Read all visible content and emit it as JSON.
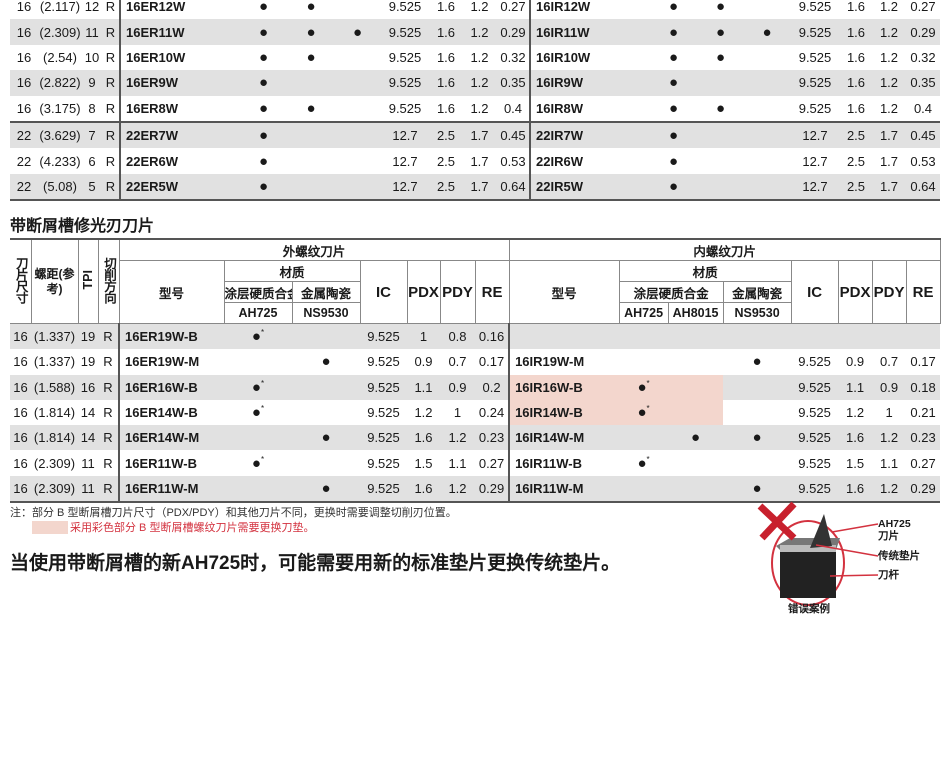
{
  "table1": {
    "rows": [
      {
        "size": "16",
        "pitch": "(2.117)",
        "tpi": "12",
        "dir": "R",
        "ext": {
          "model": "16ER12W",
          "m": [
            "●",
            "●",
            ""
          ],
          "ic": "9.525",
          "pdx": "1.6",
          "pdy": "1.2",
          "re": "0.27"
        },
        "int": {
          "model": "16IR12W",
          "m": [
            "●",
            "●",
            ""
          ],
          "ic": "9.525",
          "pdx": "1.6",
          "pdy": "1.2",
          "re": "0.27"
        }
      },
      {
        "size": "16",
        "pitch": "(2.309)",
        "tpi": "11",
        "dir": "R",
        "ext": {
          "model": "16ER11W",
          "m": [
            "●",
            "●",
            "●"
          ],
          "ic": "9.525",
          "pdx": "1.6",
          "pdy": "1.2",
          "re": "0.29"
        },
        "int": {
          "model": "16IR11W",
          "m": [
            "●",
            "●",
            "●"
          ],
          "ic": "9.525",
          "pdx": "1.6",
          "pdy": "1.2",
          "re": "0.29"
        }
      },
      {
        "size": "16",
        "pitch": "(2.54)",
        "tpi": "10",
        "dir": "R",
        "ext": {
          "model": "16ER10W",
          "m": [
            "●",
            "●",
            ""
          ],
          "ic": "9.525",
          "pdx": "1.6",
          "pdy": "1.2",
          "re": "0.32"
        },
        "int": {
          "model": "16IR10W",
          "m": [
            "●",
            "●",
            ""
          ],
          "ic": "9.525",
          "pdx": "1.6",
          "pdy": "1.2",
          "re": "0.32"
        }
      },
      {
        "size": "16",
        "pitch": "(2.822)",
        "tpi": "9",
        "dir": "R",
        "ext": {
          "model": "16ER9W",
          "m": [
            "●",
            "",
            ""
          ],
          "ic": "9.525",
          "pdx": "1.6",
          "pdy": "1.2",
          "re": "0.35"
        },
        "int": {
          "model": "16IR9W",
          "m": [
            "●",
            "",
            ""
          ],
          "ic": "9.525",
          "pdx": "1.6",
          "pdy": "1.2",
          "re": "0.35"
        }
      },
      {
        "size": "16",
        "pitch": "(3.175)",
        "tpi": "8",
        "dir": "R",
        "ext": {
          "model": "16ER8W",
          "m": [
            "●",
            "●",
            ""
          ],
          "ic": "9.525",
          "pdx": "1.6",
          "pdy": "1.2",
          "re": "0.4"
        },
        "int": {
          "model": "16IR8W",
          "m": [
            "●",
            "●",
            ""
          ],
          "ic": "9.525",
          "pdx": "1.6",
          "pdy": "1.2",
          "re": "0.4"
        }
      },
      {
        "size": "22",
        "pitch": "(3.629)",
        "tpi": "7",
        "dir": "R",
        "ext": {
          "model": "22ER7W",
          "m": [
            "●",
            "",
            ""
          ],
          "ic": "12.7",
          "pdx": "2.5",
          "pdy": "1.7",
          "re": "0.45"
        },
        "int": {
          "model": "22IR7W",
          "m": [
            "●",
            "",
            ""
          ],
          "ic": "12.7",
          "pdx": "2.5",
          "pdy": "1.7",
          "re": "0.45"
        }
      },
      {
        "size": "22",
        "pitch": "(4.233)",
        "tpi": "6",
        "dir": "R",
        "ext": {
          "model": "22ER6W",
          "m": [
            "●",
            "",
            ""
          ],
          "ic": "12.7",
          "pdx": "2.5",
          "pdy": "1.7",
          "re": "0.53"
        },
        "int": {
          "model": "22IR6W",
          "m": [
            "●",
            "",
            ""
          ],
          "ic": "12.7",
          "pdx": "2.5",
          "pdy": "1.7",
          "re": "0.53"
        }
      },
      {
        "size": "22",
        "pitch": "(5.08)",
        "tpi": "5",
        "dir": "R",
        "ext": {
          "model": "22ER5W",
          "m": [
            "●",
            "",
            ""
          ],
          "ic": "12.7",
          "pdx": "2.5",
          "pdy": "1.7",
          "re": "0.64"
        },
        "int": {
          "model": "22IR5W",
          "m": [
            "●",
            "",
            ""
          ],
          "ic": "12.7",
          "pdx": "2.5",
          "pdy": "1.7",
          "re": "0.64"
        }
      }
    ]
  },
  "table2": {
    "title": "带断屑槽修光刃刀片",
    "headers": {
      "size": "刀片尺寸",
      "pitch": "螺距(参考)",
      "tpi": "TPI",
      "dir": "切削方向",
      "external": "外螺纹刀片",
      "internal": "内螺纹刀片",
      "model": "型号",
      "material": "材质",
      "coated_carbide": "涂层硬质合金",
      "cermet": "金属陶瓷",
      "ah725": "AH725",
      "ah8015": "AH8015",
      "ns9530": "NS9530",
      "ic": "IC",
      "pdx": "PDX",
      "pdy": "PDY",
      "re": "RE"
    },
    "rows": [
      {
        "size": "16",
        "pitch": "(1.337)",
        "tpi": "19",
        "dir": "R",
        "ext": {
          "model": "16ER19W-B",
          "m": [
            "●*",
            ""
          ],
          "ic": "9.525",
          "pdx": "1",
          "pdy": "0.8",
          "re": "0.16"
        },
        "int": {
          "model": "",
          "m": [
            "",
            "",
            ""
          ],
          "ic": "",
          "pdx": "",
          "pdy": "",
          "re": ""
        }
      },
      {
        "size": "16",
        "pitch": "(1.337)",
        "tpi": "19",
        "dir": "R",
        "ext": {
          "model": "16ER19W-M",
          "m": [
            "",
            "●"
          ],
          "ic": "9.525",
          "pdx": "0.9",
          "pdy": "0.7",
          "re": "0.17"
        },
        "int": {
          "model": "16IR19W-M",
          "m": [
            "",
            "",
            "●"
          ],
          "ic": "9.525",
          "pdx": "0.9",
          "pdy": "0.7",
          "re": "0.17"
        }
      },
      {
        "size": "16",
        "pitch": "(1.588)",
        "tpi": "16",
        "dir": "R",
        "ext": {
          "model": "16ER16W-B",
          "m": [
            "●*",
            ""
          ],
          "ic": "9.525",
          "pdx": "1.1",
          "pdy": "0.9",
          "re": "0.2"
        },
        "int": {
          "model": "16IR16W-B",
          "m": [
            "●*",
            "",
            ""
          ],
          "ic": "9.525",
          "pdx": "1.1",
          "pdy": "0.9",
          "re": "0.18",
          "highlight": true
        }
      },
      {
        "size": "16",
        "pitch": "(1.814)",
        "tpi": "14",
        "dir": "R",
        "ext": {
          "model": "16ER14W-B",
          "m": [
            "●*",
            ""
          ],
          "ic": "9.525",
          "pdx": "1.2",
          "pdy": "1",
          "re": "0.24"
        },
        "int": {
          "model": "16IR14W-B",
          "m": [
            "●*",
            "",
            ""
          ],
          "ic": "9.525",
          "pdx": "1.2",
          "pdy": "1",
          "re": "0.21",
          "highlight": true
        }
      },
      {
        "size": "16",
        "pitch": "(1.814)",
        "tpi": "14",
        "dir": "R",
        "ext": {
          "model": "16ER14W-M",
          "m": [
            "",
            "●"
          ],
          "ic": "9.525",
          "pdx": "1.6",
          "pdy": "1.2",
          "re": "0.23"
        },
        "int": {
          "model": "16IR14W-M",
          "m": [
            "",
            "●",
            "●"
          ],
          "ic": "9.525",
          "pdx": "1.6",
          "pdy": "1.2",
          "re": "0.23"
        }
      },
      {
        "size": "16",
        "pitch": "(2.309)",
        "tpi": "11",
        "dir": "R",
        "ext": {
          "model": "16ER11W-B",
          "m": [
            "●*",
            ""
          ],
          "ic": "9.525",
          "pdx": "1.5",
          "pdy": "1.1",
          "re": "0.27"
        },
        "int": {
          "model": "16IR11W-B",
          "m": [
            "●*",
            "",
            ""
          ],
          "ic": "9.525",
          "pdx": "1.5",
          "pdy": "1.1",
          "re": "0.27"
        }
      },
      {
        "size": "16",
        "pitch": "(2.309)",
        "tpi": "11",
        "dir": "R",
        "ext": {
          "model": "16ER11W-M",
          "m": [
            "",
            "●"
          ],
          "ic": "9.525",
          "pdx": "1.6",
          "pdy": "1.2",
          "re": "0.29"
        },
        "int": {
          "model": "16IR11W-M",
          "m": [
            "",
            "",
            "●"
          ],
          "ic": "9.525",
          "pdx": "1.6",
          "pdy": "1.2",
          "re": "0.29"
        }
      }
    ]
  },
  "notes": {
    "note1": "注：部分 B 型断屑槽刀片尺寸（PDX/PDY）和其他刀片不同，更换时需要调整切削刃位置。",
    "note2": "采用彩色部分 B 型断屑槽螺纹刀片需要更换刀垫。"
  },
  "headline": "当使用带断屑槽的新AH725时，可能需要用新的标准垫片更换传统垫片。",
  "diagram": {
    "label_insert": "AH725\n刀片",
    "label_shim": "传统垫片",
    "label_holder": "刀杆",
    "caption": "错误案例",
    "icon": "red-x-wrong-icon"
  },
  "colors": {
    "highlight": "#f3d6cd",
    "row_gray": "#e1e1e1",
    "accent_red": "#d3323f"
  }
}
